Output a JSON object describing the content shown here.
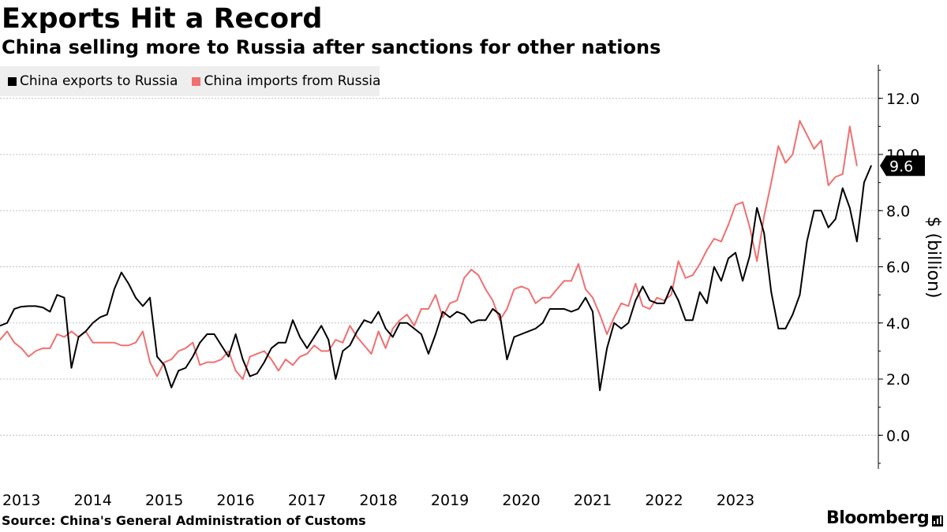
{
  "title": "Exports Hit a Record",
  "subtitle": "China selling more to Russia after sanctions for other nations",
  "source": "Source: China's General Administration of Customs",
  "brand": "Bloomberg",
  "brand_icon": "bar-chart-icon",
  "colors": {
    "exports": "#000000",
    "imports": "#f07070",
    "grid": "#bfbfbf",
    "legend_bg": "#eeeeee"
  },
  "chart_data": {
    "type": "line",
    "title": "Exports Hit a Record",
    "subtitle": "China selling more to Russia after sanctions for other nations",
    "ylabel": "$ (billion)",
    "xlabel": "",
    "ylim": [
      -1.2,
      13.2
    ],
    "yticks": [
      0.0,
      2.0,
      4.0,
      6.0,
      8.0,
      10.0,
      12.0
    ],
    "ytick_labels": [
      "0.0",
      "2.0",
      "4.0",
      "6.0",
      "8.0",
      "10.0",
      "12.0"
    ],
    "grid": true,
    "legend": "top-left",
    "x_start": "2013-01",
    "x_frequency": "monthly",
    "xlim_months": [
      0,
      123
    ],
    "xticks": [
      {
        "label": "2013",
        "month": 3
      },
      {
        "label": "2014",
        "month": 13
      },
      {
        "label": "2015",
        "month": 23
      },
      {
        "label": "2016",
        "month": 33
      },
      {
        "label": "2017",
        "month": 43
      },
      {
        "label": "2018",
        "month": 53
      },
      {
        "label": "2019",
        "month": 63
      },
      {
        "label": "2020",
        "month": 73
      },
      {
        "label": "2021",
        "month": 83
      },
      {
        "label": "2022",
        "month": 93
      },
      {
        "label": "2023",
        "month": 103
      }
    ],
    "last_value_label": "9.6",
    "series": [
      {
        "name": "China exports to Russia",
        "key": "exports",
        "values": [
          3.9,
          4.0,
          4.5,
          4.58,
          4.6,
          4.6,
          4.55,
          4.4,
          5.0,
          4.9,
          2.4,
          3.5,
          3.7,
          4.0,
          4.2,
          4.3,
          5.2,
          5.8,
          5.4,
          4.9,
          4.6,
          4.9,
          2.8,
          2.5,
          1.7,
          2.3,
          2.4,
          2.8,
          3.3,
          3.6,
          3.6,
          3.2,
          2.8,
          3.6,
          2.7,
          2.1,
          2.2,
          2.6,
          3.1,
          3.3,
          3.3,
          4.1,
          3.5,
          3.1,
          3.5,
          3.9,
          3.4,
          2.0,
          3.0,
          3.2,
          3.7,
          4.1,
          4.0,
          4.4,
          3.8,
          3.5,
          4.0,
          4.0,
          3.8,
          3.6,
          2.9,
          3.6,
          4.4,
          4.2,
          4.4,
          4.3,
          4.0,
          4.1,
          4.1,
          4.5,
          4.3,
          2.7,
          3.5,
          3.6,
          3.7,
          3.8,
          4.0,
          4.5,
          4.5,
          4.5,
          4.4,
          4.5,
          4.9,
          4.4,
          1.6,
          3.1,
          4.0,
          3.8,
          4.0,
          4.8,
          5.3,
          4.8,
          4.7,
          4.7,
          5.3,
          4.8,
          4.1,
          4.1,
          5.1,
          4.7,
          6.0,
          5.5,
          6.3,
          6.5,
          5.5,
          6.4,
          8.1,
          7.2,
          5.1,
          3.8,
          3.8,
          4.3,
          5.0,
          6.9,
          8.0,
          8.0,
          7.4,
          7.7,
          8.8,
          8.1,
          6.9,
          9.0,
          9.6
        ]
      },
      {
        "name": "China imports from Russia",
        "key": "imports",
        "values": [
          3.4,
          3.7,
          3.3,
          3.1,
          2.8,
          3.0,
          3.1,
          3.1,
          3.6,
          3.5,
          3.7,
          3.5,
          3.7,
          3.3,
          3.3,
          3.3,
          3.3,
          3.2,
          3.2,
          3.3,
          3.7,
          2.6,
          2.1,
          2.6,
          2.7,
          3.0,
          3.1,
          3.3,
          2.5,
          2.6,
          2.6,
          2.7,
          3.0,
          2.3,
          2.0,
          2.8,
          2.9,
          3.0,
          2.7,
          2.3,
          2.7,
          2.5,
          2.8,
          2.9,
          3.2,
          3.0,
          3.0,
          3.4,
          3.3,
          3.9,
          3.5,
          3.2,
          2.9,
          3.7,
          3.1,
          3.8,
          4.1,
          4.3,
          3.9,
          4.5,
          4.5,
          5.0,
          4.2,
          4.7,
          4.8,
          5.6,
          5.9,
          5.7,
          5.2,
          4.8,
          4.1,
          4.5,
          5.2,
          5.3,
          5.2,
          4.7,
          4.9,
          4.9,
          5.2,
          5.5,
          5.5,
          6.1,
          5.2,
          4.9,
          4.3,
          3.6,
          4.2,
          4.7,
          4.6,
          5.4,
          4.6,
          4.5,
          4.9,
          4.8,
          5.0,
          6.2,
          5.6,
          5.7,
          6.1,
          6.6,
          7.0,
          6.9,
          7.5,
          8.2,
          8.3,
          7.4,
          6.2,
          7.8,
          9.0,
          10.3,
          9.7,
          10.0,
          11.2,
          10.7,
          10.2,
          10.5,
          8.9,
          9.2,
          9.3,
          11.0,
          9.6
        ]
      }
    ]
  }
}
